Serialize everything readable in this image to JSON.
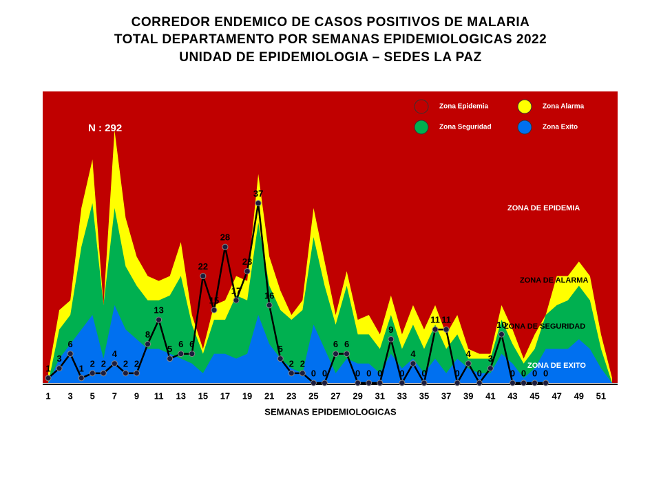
{
  "chart_data": {
    "type": "endemic-corridor",
    "title": [
      "CORREDOR ENDEMICO DE CASOS POSITIVOS DE MALARIA",
      "TOTAL DEPARTAMENTO POR SEMANAS EPIDEMIOLOGICAS 2022",
      "UNIDAD DE EPIDEMIOLOGIA – SEDES LA PAZ"
    ],
    "xlabel": "SEMANAS EPIDEMIOLOGICAS",
    "x": [
      1,
      2,
      3,
      4,
      5,
      6,
      7,
      8,
      9,
      10,
      11,
      12,
      13,
      14,
      15,
      16,
      17,
      18,
      19,
      20,
      21,
      22,
      23,
      24,
      25,
      26,
      27,
      28,
      29,
      30,
      31,
      32,
      33,
      34,
      35,
      36,
      37,
      38,
      39,
      40,
      41,
      42,
      43,
      44,
      45,
      46,
      47,
      48,
      49,
      50,
      51,
      52
    ],
    "xlim": [
      0.5,
      52.5
    ],
    "xticks": [
      1,
      3,
      5,
      7,
      9,
      11,
      13,
      15,
      17,
      19,
      21,
      23,
      25,
      27,
      29,
      31,
      33,
      35,
      37,
      39,
      41,
      43,
      45,
      47,
      49,
      51
    ],
    "ylim": [
      0,
      60
    ],
    "zones": [
      {
        "name": "Zona Epidemia",
        "color": "#c00000"
      },
      {
        "name": "Zona Alarma",
        "color": "#ffff00",
        "values": [
          2,
          15,
          17,
          36,
          46,
          16,
          52,
          34,
          26,
          22,
          21,
          22,
          29,
          14,
          7,
          16,
          17,
          22,
          21,
          43,
          26,
          19,
          14,
          17,
          36,
          25,
          14,
          23,
          13,
          14,
          10,
          18,
          10,
          16,
          11,
          16,
          10,
          14,
          7,
          6,
          6,
          16,
          11,
          5,
          10,
          14,
          22,
          22,
          25,
          22,
          10,
          1
        ]
      },
      {
        "name": "Zona Seguridad",
        "color": "#00b050",
        "values": [
          0,
          11,
          14,
          28,
          37,
          16,
          36,
          24,
          20,
          17,
          17,
          18,
          22,
          12,
          6,
          13,
          13,
          18,
          17,
          33,
          20,
          15,
          13,
          15,
          30,
          20,
          12,
          20,
          10,
          10,
          7,
          14,
          7,
          12,
          7,
          12,
          7,
          10,
          5,
          5,
          5,
          13,
          8,
          4,
          7,
          14,
          16,
          17,
          20,
          17,
          7,
          0
        ]
      },
      {
        "name": "Zona Exito",
        "color": "#0070f0",
        "values": [
          0,
          5,
          8,
          11,
          14,
          5,
          16,
          11,
          9,
          7,
          7,
          6,
          5,
          4,
          2,
          6,
          6,
          5,
          6,
          14,
          8,
          5,
          3,
          2,
          12,
          7,
          2,
          5,
          4,
          4,
          2,
          6,
          3,
          5,
          2,
          5,
          2,
          5,
          3,
          2,
          2,
          6,
          4,
          1,
          3,
          7,
          7,
          7,
          9,
          7,
          3,
          0
        ]
      }
    ],
    "cases": {
      "color": "#000000",
      "values": [
        1,
        3,
        6,
        1,
        2,
        2,
        4,
        2,
        2,
        8,
        13,
        5,
        6,
        6,
        22,
        15,
        28,
        17,
        23,
        37,
        16,
        5,
        2,
        2,
        0,
        0,
        6,
        6,
        0,
        0,
        0,
        9,
        0,
        4,
        0,
        11,
        11,
        0,
        4,
        0,
        3,
        10,
        0,
        0,
        0,
        0,
        null,
        null,
        null,
        null,
        null,
        null
      ]
    },
    "annotations": [
      "N : 292",
      "ZONA DE EPIDEMIA",
      "ZONA DE ALARMA",
      "ZONA DE  SEGURIDAD",
      "ZONA DE  EXITO"
    ]
  }
}
